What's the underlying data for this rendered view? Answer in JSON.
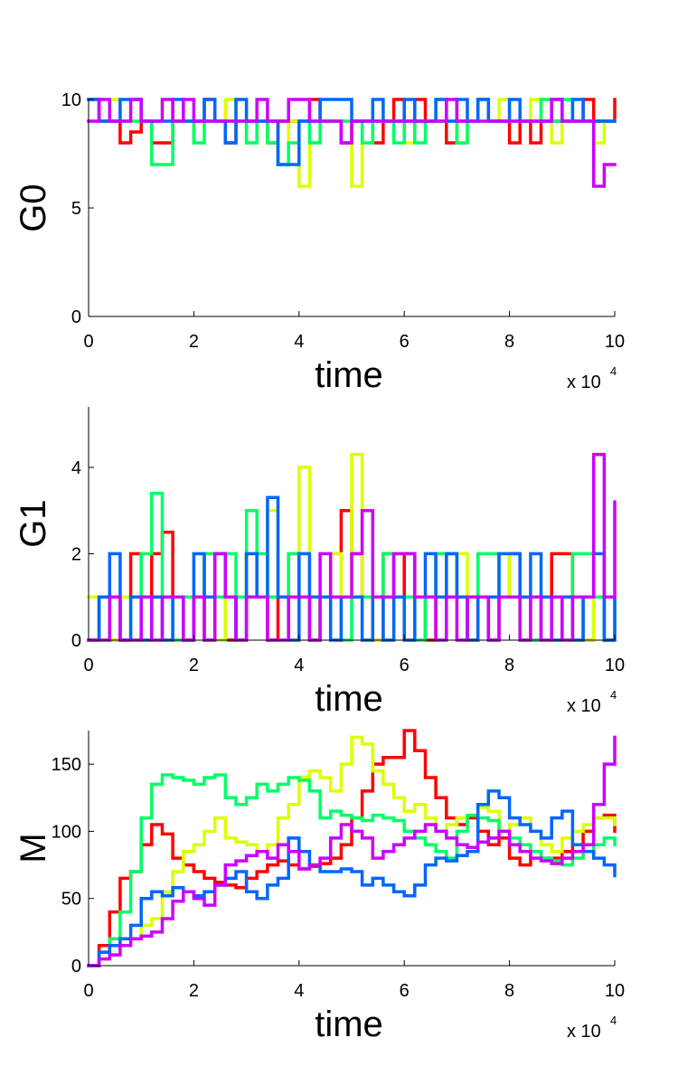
{
  "colors": {
    "red": "#ff0000",
    "yellow": "#ddff00",
    "green": "#00ff66",
    "blue": "#0066ff",
    "magenta": "#cc00ff",
    "axis": "#000000",
    "background": "#ffffff"
  },
  "chart_data": [
    {
      "type": "line",
      "step": true,
      "ylabel": "G0",
      "xlabel": "time",
      "xexp": {
        "base": "x 10",
        "sup": "4"
      },
      "xlim": [
        0,
        100000
      ],
      "ylim": [
        0,
        10
      ],
      "xticks": [
        0,
        20000,
        40000,
        60000,
        80000,
        100000
      ],
      "xtick_labels": [
        "0",
        "2",
        "4",
        "6",
        "8",
        "10"
      ],
      "yticks": [
        0,
        5,
        10
      ],
      "ytick_labels": [
        "0",
        "5",
        "10"
      ],
      "x": [
        0,
        2000,
        4000,
        6000,
        8000,
        10000,
        12000,
        14000,
        16000,
        18000,
        20000,
        22000,
        24000,
        26000,
        28000,
        30000,
        32000,
        34000,
        36000,
        38000,
        40000,
        42000,
        44000,
        46000,
        48000,
        50000,
        52000,
        54000,
        56000,
        58000,
        60000,
        62000,
        64000,
        66000,
        68000,
        70000,
        72000,
        74000,
        76000,
        78000,
        80000,
        82000,
        84000,
        86000,
        88000,
        90000,
        92000,
        94000,
        96000,
        98000,
        100000
      ],
      "series": [
        {
          "color": "red",
          "values": [
            10,
            9,
            9,
            8,
            8.5,
            9,
            8,
            8,
            9,
            9,
            9,
            10,
            9,
            8,
            9,
            9,
            9,
            8,
            9,
            9,
            9,
            10,
            9,
            9,
            8,
            9,
            9,
            8,
            9,
            10,
            9,
            10,
            9,
            9,
            8,
            9,
            9,
            10,
            9,
            9,
            8,
            9,
            8,
            9,
            9,
            9,
            9,
            10,
            9,
            9,
            10
          ]
        },
        {
          "color": "yellow",
          "values": [
            9,
            9,
            10,
            9,
            10,
            9,
            9,
            10,
            9,
            9,
            8,
            9,
            9,
            10,
            9,
            8,
            9,
            8,
            7,
            9,
            6,
            8,
            9,
            9,
            9,
            6,
            8,
            9,
            9,
            9,
            8,
            9,
            9,
            9,
            10,
            8,
            9,
            9,
            9,
            10,
            9,
            9,
            10,
            9,
            8,
            9,
            9,
            9,
            8,
            9,
            9
          ]
        },
        {
          "color": "green",
          "values": [
            10,
            9,
            9,
            9,
            9,
            9,
            7,
            7,
            9,
            9,
            8,
            9,
            9,
            9,
            9,
            8,
            9,
            8,
            7,
            8,
            9,
            8,
            9,
            9,
            9,
            9,
            8,
            9,
            9,
            8,
            9,
            8,
            9,
            10,
            9,
            8,
            9,
            10,
            9,
            9,
            9,
            9,
            9,
            10,
            9,
            10,
            9,
            9,
            9,
            9,
            9
          ]
        },
        {
          "color": "blue",
          "values": [
            10,
            9,
            9,
            10,
            10,
            9,
            9,
            9,
            10,
            9,
            9,
            10,
            9,
            8,
            10,
            9,
            9,
            9,
            7,
            7,
            9,
            9,
            10,
            10,
            10,
            9,
            9,
            10,
            9,
            9,
            10,
            9,
            9,
            10,
            9,
            10,
            9,
            10,
            9,
            9,
            10,
            9,
            9,
            9,
            10,
            9,
            10,
            9,
            9,
            9,
            9
          ]
        },
        {
          "color": "magenta",
          "values": [
            9,
            10,
            9,
            9,
            10,
            9,
            9,
            10,
            9,
            10,
            9,
            9,
            9,
            9,
            9,
            9,
            10,
            9,
            9,
            10,
            10,
            9,
            9,
            9,
            8,
            9,
            9,
            9,
            9,
            9,
            9,
            9,
            9,
            9,
            10,
            9,
            9,
            9,
            9,
            9,
            9,
            9,
            9,
            9,
            10,
            9,
            9,
            9,
            6,
            7,
            7
          ]
        }
      ]
    },
    {
      "type": "line",
      "step": true,
      "ylabel": "G1",
      "xlabel": "time",
      "xexp": {
        "base": "x 10",
        "sup": "4"
      },
      "xlim": [
        0,
        100000
      ],
      "ylim": [
        0,
        5.4
      ],
      "xticks": [
        0,
        20000,
        40000,
        60000,
        80000,
        100000
      ],
      "xtick_labels": [
        "0",
        "2",
        "4",
        "6",
        "8",
        "10"
      ],
      "yticks": [
        0,
        2,
        4
      ],
      "ytick_labels": [
        "0",
        "2",
        "4"
      ],
      "x": [
        0,
        2000,
        4000,
        6000,
        8000,
        10000,
        12000,
        14000,
        16000,
        18000,
        20000,
        22000,
        24000,
        26000,
        28000,
        30000,
        32000,
        34000,
        36000,
        38000,
        40000,
        42000,
        44000,
        46000,
        48000,
        50000,
        52000,
        54000,
        56000,
        58000,
        60000,
        62000,
        64000,
        66000,
        68000,
        70000,
        72000,
        74000,
        76000,
        78000,
        80000,
        82000,
        84000,
        86000,
        88000,
        90000,
        92000,
        94000,
        96000,
        98000,
        100000
      ],
      "series": [
        {
          "color": "red",
          "values": [
            0,
            1,
            0,
            1,
            2,
            1,
            2,
            2.5,
            1,
            0,
            1,
            0,
            1,
            0,
            1,
            2,
            1,
            0,
            1,
            2,
            1,
            0,
            1,
            2,
            3,
            2,
            1,
            0,
            2,
            1,
            2,
            1,
            0,
            1,
            2,
            1,
            0,
            1,
            0,
            1,
            2,
            1,
            0,
            1,
            2,
            2,
            1,
            0,
            1,
            0,
            0
          ]
        },
        {
          "color": "yellow",
          "values": [
            1,
            0,
            0,
            1,
            0,
            0,
            1,
            1,
            0,
            1,
            1,
            2,
            0,
            1,
            1,
            2,
            1,
            3,
            1,
            2,
            4,
            0,
            1,
            2,
            1,
            4.3,
            1,
            0,
            1,
            1,
            0,
            1,
            1,
            2,
            1,
            2,
            0,
            1,
            1,
            2,
            1,
            0,
            1,
            1,
            0,
            1,
            1,
            0,
            1,
            1,
            1
          ]
        },
        {
          "color": "green",
          "values": [
            0,
            1,
            1,
            0,
            1,
            2,
            3.4,
            1,
            0,
            1,
            1,
            2,
            1,
            2,
            1,
            3,
            2,
            1,
            1,
            2,
            1,
            0,
            1,
            1,
            0,
            1,
            1,
            1,
            2,
            1,
            1,
            0,
            1,
            2,
            2,
            1,
            1,
            2,
            2,
            1,
            1,
            0,
            0,
            1,
            1,
            1,
            2,
            2,
            1,
            0,
            1
          ]
        },
        {
          "color": "blue",
          "values": [
            0,
            1,
            2,
            0,
            1,
            0,
            1,
            0,
            1,
            0,
            2,
            1,
            2,
            1,
            0,
            2,
            1,
            3.3,
            1,
            0,
            2,
            1,
            1,
            0,
            1,
            1,
            0,
            1,
            0,
            1,
            0,
            1,
            2,
            1,
            2,
            1,
            0,
            1,
            1,
            2,
            2,
            1,
            2,
            1,
            0,
            1,
            0,
            1,
            2,
            0,
            1
          ]
        },
        {
          "color": "magenta",
          "values": [
            0,
            0,
            1,
            0,
            0,
            1,
            0,
            1,
            1,
            0,
            1,
            0,
            2,
            1,
            0,
            1,
            1,
            0,
            0,
            1,
            1,
            0,
            2,
            1,
            1,
            2,
            3,
            1,
            1,
            2,
            2,
            1,
            1,
            0,
            1,
            0,
            1,
            1,
            0,
            1,
            1,
            0,
            1,
            0,
            1,
            0,
            1,
            1,
            4.3,
            1,
            3.2
          ]
        }
      ]
    },
    {
      "type": "line",
      "step": true,
      "ylabel": "M",
      "xlabel": "time",
      "xexp": {
        "base": "x 10",
        "sup": "4"
      },
      "xlim": [
        0,
        100000
      ],
      "ylim": [
        0,
        175
      ],
      "xticks": [
        0,
        20000,
        40000,
        60000,
        80000,
        100000
      ],
      "xtick_labels": [
        "0",
        "2",
        "4",
        "6",
        "8",
        "10"
      ],
      "yticks": [
        0,
        50,
        100,
        150
      ],
      "ytick_labels": [
        "0",
        "50",
        "100",
        "150"
      ],
      "x": [
        0,
        2000,
        4000,
        6000,
        8000,
        10000,
        12000,
        14000,
        16000,
        18000,
        20000,
        22000,
        24000,
        26000,
        28000,
        30000,
        32000,
        34000,
        36000,
        38000,
        40000,
        42000,
        44000,
        46000,
        48000,
        50000,
        52000,
        54000,
        56000,
        58000,
        60000,
        62000,
        64000,
        66000,
        68000,
        70000,
        72000,
        74000,
        76000,
        78000,
        80000,
        82000,
        84000,
        86000,
        88000,
        90000,
        92000,
        94000,
        96000,
        98000,
        100000
      ],
      "series": [
        {
          "color": "red",
          "values": [
            0,
            15,
            40,
            65,
            70,
            90,
            105,
            98,
            80,
            75,
            70,
            65,
            62,
            60,
            58,
            65,
            70,
            75,
            78,
            75,
            72,
            74,
            76,
            80,
            90,
            110,
            130,
            150,
            155,
            155,
            175,
            160,
            140,
            125,
            110,
            105,
            110,
            100,
            90,
            95,
            80,
            75,
            85,
            80,
            80,
            85,
            90,
            100,
            110,
            112,
            100
          ]
        },
        {
          "color": "yellow",
          "values": [
            0,
            5,
            8,
            15,
            20,
            30,
            35,
            55,
            70,
            85,
            90,
            100,
            110,
            95,
            92,
            90,
            85,
            90,
            110,
            120,
            140,
            145,
            140,
            130,
            150,
            170,
            165,
            145,
            135,
            125,
            115,
            120,
            110,
            100,
            105,
            110,
            112,
            118,
            115,
            100,
            105,
            110,
            100,
            90,
            85,
            95,
            100,
            105,
            110,
            110,
            105
          ]
        },
        {
          "color": "green",
          "values": [
            0,
            10,
            20,
            40,
            70,
            110,
            135,
            142,
            140,
            138,
            135,
            140,
            142,
            125,
            120,
            125,
            135,
            130,
            135,
            140,
            138,
            130,
            110,
            115,
            112,
            110,
            108,
            112,
            110,
            108,
            100,
            95,
            90,
            85,
            80,
            100,
            112,
            110,
            108,
            100,
            95,
            90,
            85,
            80,
            78,
            75,
            80,
            85,
            90,
            95,
            90
          ]
        },
        {
          "color": "blue",
          "values": [
            0,
            10,
            15,
            20,
            30,
            50,
            55,
            52,
            58,
            55,
            52,
            55,
            60,
            65,
            70,
            55,
            50,
            60,
            65,
            95,
            85,
            75,
            70,
            70,
            72,
            70,
            60,
            65,
            60,
            55,
            52,
            60,
            75,
            80,
            78,
            82,
            85,
            120,
            130,
            125,
            110,
            105,
            100,
            95,
            110,
            115,
            90,
            85,
            80,
            75,
            67
          ]
        },
        {
          "color": "magenta",
          "values": [
            0,
            5,
            8,
            15,
            20,
            22,
            25,
            35,
            48,
            55,
            50,
            45,
            60,
            75,
            78,
            82,
            85,
            80,
            90,
            85,
            72,
            75,
            80,
            95,
            105,
            100,
            95,
            80,
            85,
            90,
            95,
            100,
            105,
            100,
            95,
            90,
            88,
            92,
            95,
            100,
            90,
            85,
            80,
            78,
            76,
            80,
            85,
            90,
            120,
            150,
            170
          ]
        }
      ]
    }
  ]
}
